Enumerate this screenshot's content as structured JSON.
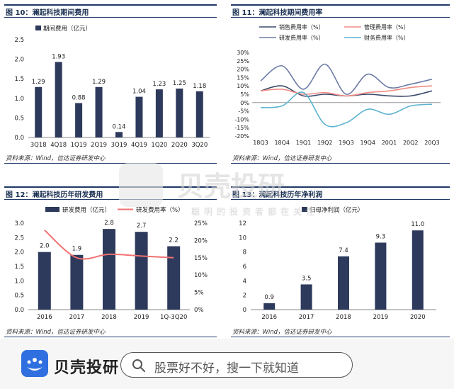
{
  "watermark": {
    "brand": "贝壳投研",
    "slogan": "聪明的投资者都在关注"
  },
  "panels": {
    "p1": {
      "title": "图 10：澜起科技期间费用",
      "source": "资料来源：Wind，信达证券研发中心"
    },
    "p2": {
      "title": "图 11：澜起科技期间费用率",
      "source": "资料来源：Wind，信达证券研发中心"
    },
    "p3": {
      "title": "图 12：澜起科技历年研发费用",
      "source": "资料来源：Wind，信达证券研发中心"
    },
    "p4": {
      "title": "图 13：澜起科技历年净利润",
      "source": "资料来源：Wind，信达证券研发中心"
    }
  },
  "bottom_bar": {
    "brand": "贝壳投研",
    "search_placeholder": "股票好不好，搜一下就知道"
  },
  "colors": {
    "bar": "#2d3a5c",
    "rule": "#1f3864",
    "sales": "#3b4a6b",
    "mgmt": "#f28b82",
    "rd": "#6d7ba6",
    "fin": "#5bb3cf",
    "rate_line": "#f07070"
  },
  "chart_data": [
    {
      "type": "bar",
      "title": "图 10：澜起科技期间费用",
      "categories": [
        "3Q18",
        "4Q18",
        "1Q19",
        "2Q19",
        "3Q19",
        "4Q19",
        "1Q20",
        "2Q20",
        "3Q20"
      ],
      "series": [
        {
          "name": "期间费用（亿元）",
          "values": [
            1.29,
            1.93,
            0.88,
            1.29,
            0.14,
            1.04,
            1.23,
            1.25,
            1.18
          ]
        }
      ],
      "data_labels": [
        "1.29",
        "1.93",
        "0.88",
        "1.29",
        "0.14",
        "1.04",
        "1.23",
        "1.25",
        "1.18"
      ],
      "ylim": [
        0,
        2.5
      ],
      "yticks": [
        "0.0",
        "0.5",
        "1.0",
        "1.5",
        "2.0",
        "2.5"
      ],
      "legend": "top-left"
    },
    {
      "type": "line",
      "title": "图 11：澜起科技期间费用率",
      "categories": [
        "18Q3",
        "18Q4",
        "19Q1",
        "19Q2",
        "19Q3",
        "19Q4",
        "20Q1",
        "20Q2",
        "20Q3"
      ],
      "series": [
        {
          "name": "销售费用率（%）",
          "values": [
            7,
            10,
            4,
            5,
            4,
            5,
            4,
            4,
            7
          ]
        },
        {
          "name": "管理费用率（%）",
          "values": [
            7,
            8,
            5,
            6,
            4,
            6,
            7,
            9,
            10
          ]
        },
        {
          "name": "研发费用率（%）",
          "values": [
            13,
            22,
            8,
            23,
            5,
            17,
            9,
            11,
            14
          ]
        },
        {
          "name": "财务费用率（%）",
          "values": [
            -3,
            -2,
            6,
            -13,
            -12,
            -4,
            -7,
            -2,
            -1
          ]
        }
      ],
      "ylim": [
        -20,
        30
      ],
      "yticks": [
        "-20%",
        "-15%",
        "-10%",
        "-5%",
        "0%",
        "5%",
        "10%",
        "15%",
        "20%",
        "25%",
        "30%"
      ],
      "legend": "top"
    },
    {
      "type": "bar",
      "title": "图 12：澜起科技历年研发费用",
      "categories": [
        "2016",
        "2017",
        "2018",
        "2019",
        "1Q-3Q20"
      ],
      "series": [
        {
          "name": "研发费用（亿元）",
          "values": [
            2.0,
            1.9,
            2.8,
            2.7,
            2.2
          ]
        },
        {
          "name": "研发费用率（%）",
          "values": [
            23,
            15,
            16,
            15.5,
            15
          ]
        }
      ],
      "data_labels": [
        "2.0",
        "1.9",
        "2.8",
        "2.7",
        "2.2"
      ],
      "ylim": [
        0,
        3.0
      ],
      "yticks": [
        "0.0",
        "0.5",
        "1.0",
        "1.5",
        "2.0",
        "2.5",
        "3.0"
      ],
      "y2lim": [
        0,
        25
      ],
      "y2ticks": [
        "0%",
        "5%",
        "10%",
        "15%",
        "20%",
        "25%"
      ],
      "legend": "top"
    },
    {
      "type": "bar",
      "title": "图 13：澜起科技历年净利润",
      "categories": [
        "2016",
        "2017",
        "2018",
        "2019",
        "2020"
      ],
      "series": [
        {
          "name": "归母净利润（亿元）",
          "values": [
            0.9,
            3.5,
            7.4,
            9.3,
            11.0
          ]
        }
      ],
      "data_labels": [
        "0.9",
        "3.5",
        "7.4",
        "9.3",
        "11.0"
      ],
      "ylim": [
        0,
        12
      ],
      "yticks": [
        "0",
        "2",
        "4",
        "6",
        "8",
        "10",
        "12"
      ],
      "legend": "top-left"
    }
  ]
}
